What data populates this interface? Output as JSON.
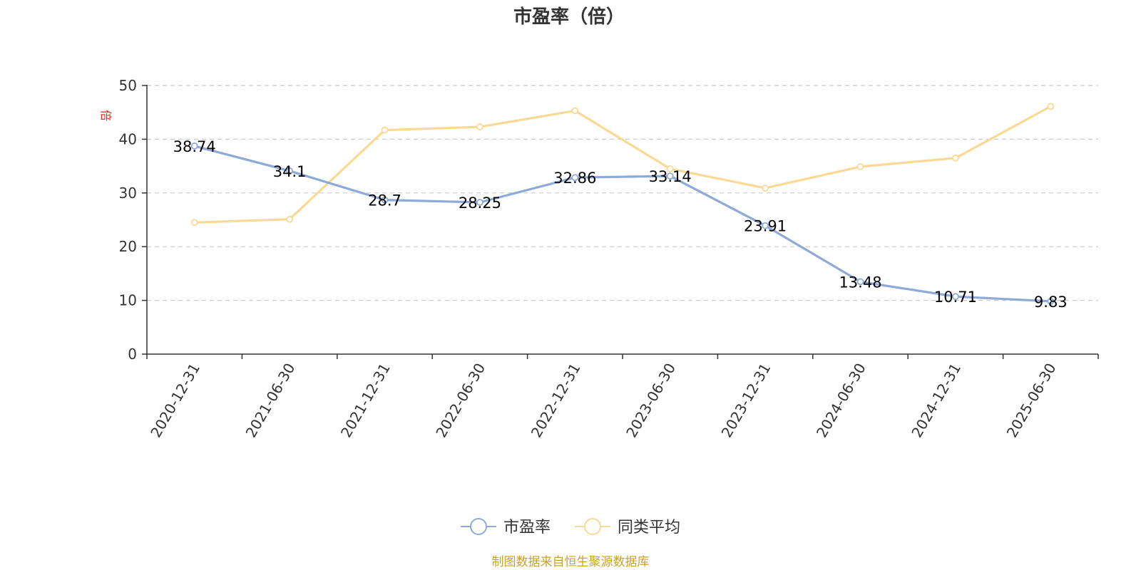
{
  "chart_data": {
    "type": "line",
    "title": "市盈率（倍）",
    "ylabel": "倍",
    "xlabel": "",
    "ylim": [
      0,
      50
    ],
    "yticks": [
      0,
      10,
      20,
      30,
      40,
      50
    ],
    "grid": true,
    "legend_position": "bottom",
    "categories": [
      "2020-12-31",
      "2021-06-30",
      "2021-12-31",
      "2022-06-30",
      "2022-12-31",
      "2023-06-30",
      "2023-12-31",
      "2024-06-30",
      "2024-12-31",
      "2025-06-30"
    ],
    "series": [
      {
        "name": "市盈率",
        "color": "#8eaad8",
        "values": [
          38.74,
          34.1,
          28.7,
          28.25,
          32.86,
          33.14,
          23.91,
          13.48,
          10.71,
          9.83
        ],
        "labels": [
          "38.74",
          "34.1",
          "28.7",
          "28.25",
          "32.86",
          "33.14",
          "23.91",
          "13.48",
          "10.71",
          "9.83"
        ],
        "show_labels": true
      },
      {
        "name": "同类平均",
        "color": "#fad994",
        "values": [
          24.5,
          25.1,
          41.7,
          42.3,
          45.3,
          34.5,
          30.9,
          34.9,
          36.5,
          46.1
        ],
        "show_labels": false
      }
    ]
  },
  "source_note": "制图数据来自恒生聚源数据库"
}
